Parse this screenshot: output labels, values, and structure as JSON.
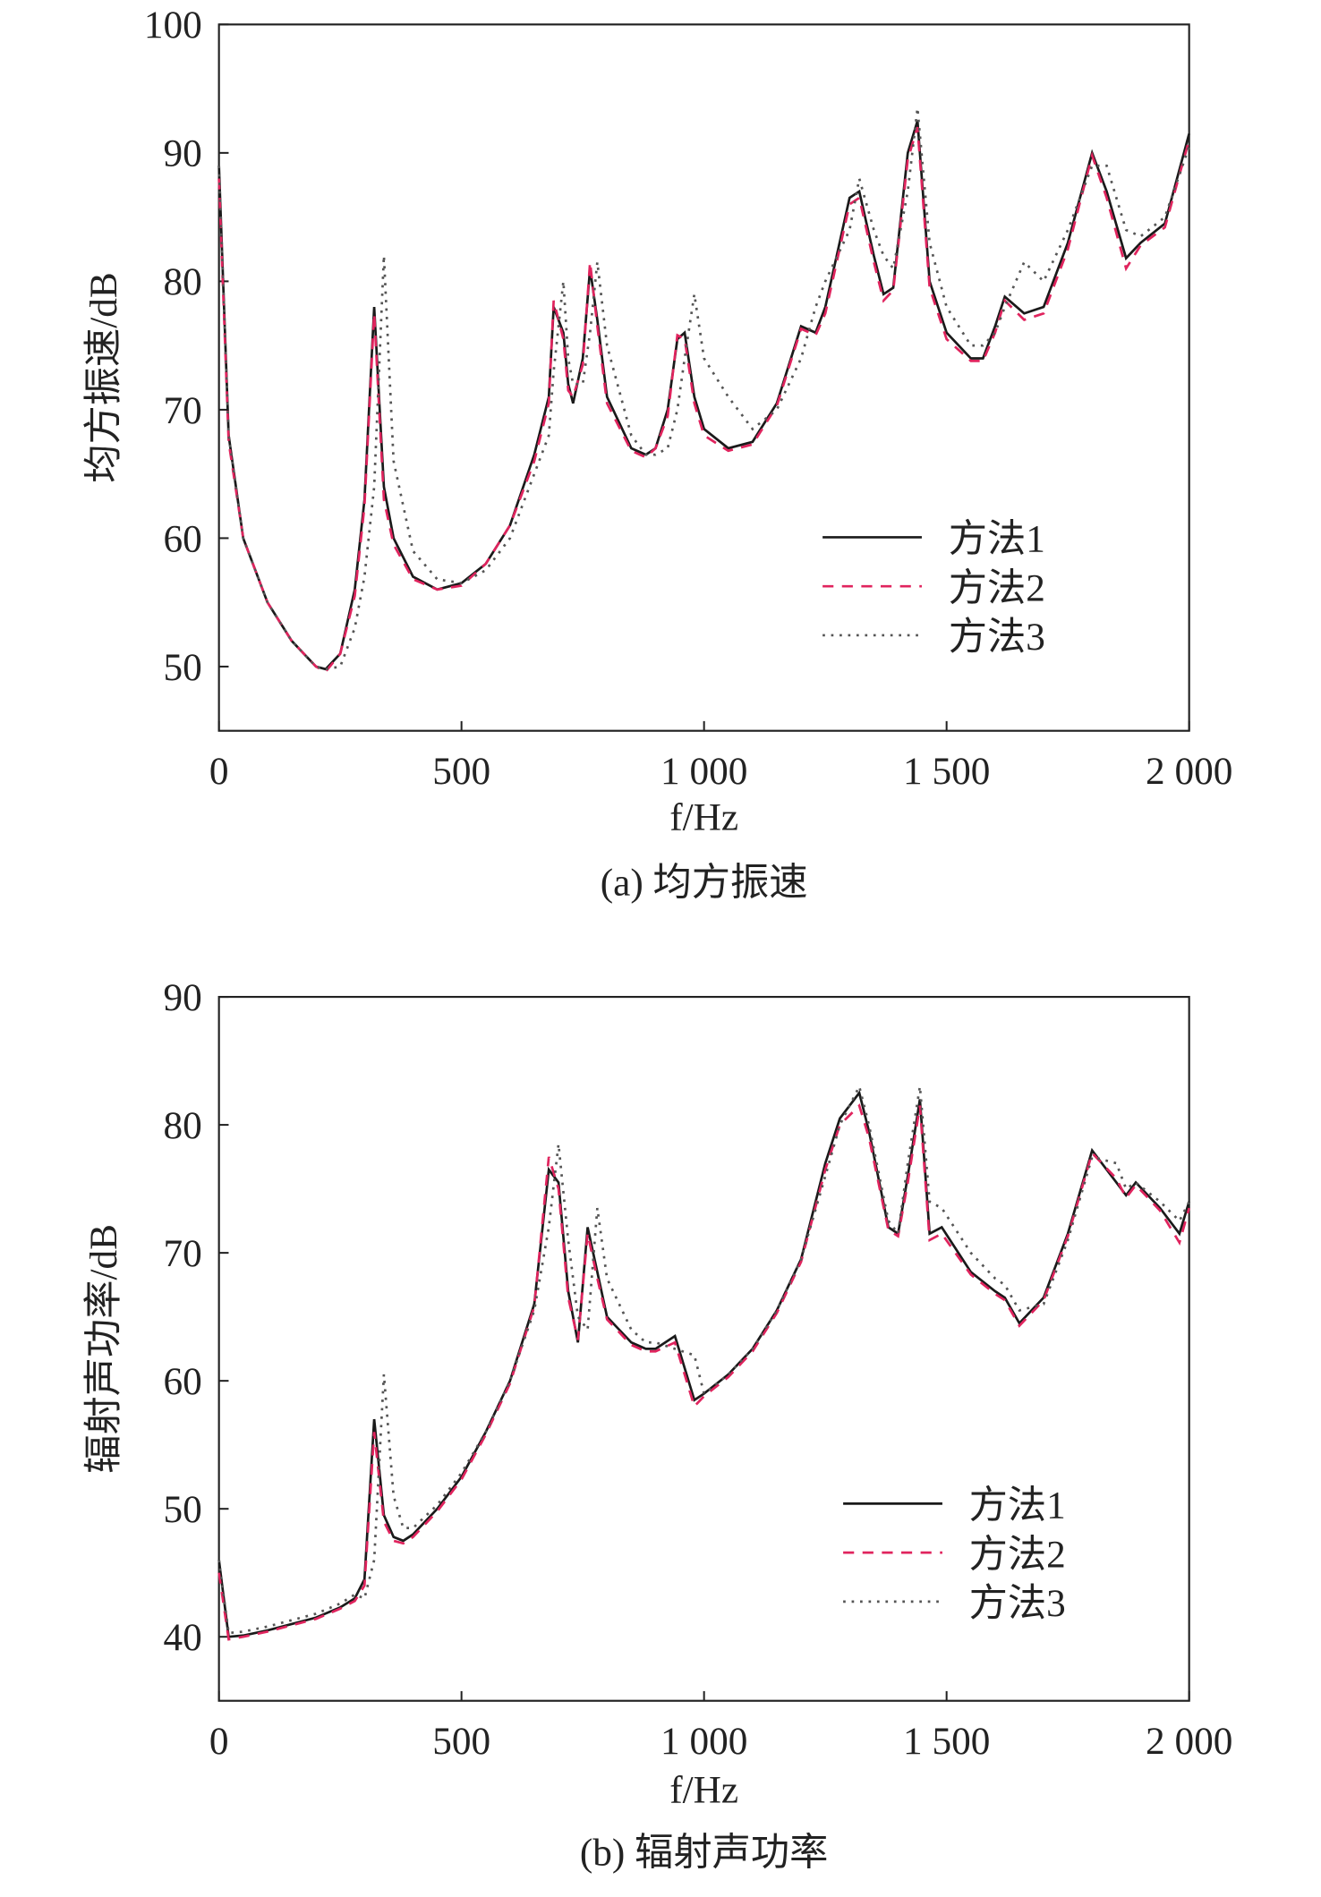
{
  "chart_data": [
    {
      "type": "line",
      "caption": "(a) 均方振速",
      "xlabel": "f/Hz",
      "ylabel": "均方振速/dB",
      "xlim": [
        0,
        2000
      ],
      "ylim": [
        45,
        100
      ],
      "xticks": [
        0,
        500,
        {
          "value": 1000,
          "label": "1 000"
        },
        {
          "value": 1500,
          "label": "1 500"
        },
        {
          "value": 2000,
          "label": "2 000"
        }
      ],
      "yticks": [
        50,
        60,
        70,
        80,
        90,
        100
      ],
      "x": [
        0,
        20,
        50,
        100,
        150,
        200,
        220,
        250,
        280,
        300,
        320,
        340,
        360,
        400,
        450,
        500,
        550,
        600,
        650,
        680,
        690,
        710,
        720,
        730,
        750,
        765,
        780,
        800,
        850,
        880,
        900,
        925,
        945,
        960,
        980,
        1000,
        1050,
        1100,
        1150,
        1200,
        1230,
        1250,
        1300,
        1320,
        1350,
        1370,
        1390,
        1420,
        1440,
        1465,
        1500,
        1550,
        1575,
        1600,
        1620,
        1660,
        1700,
        1750,
        1800,
        1830,
        1870,
        1900,
        1950,
        2000
      ],
      "series": [
        {
          "name": "方法1",
          "color": "#1a1a1a",
          "values": [
            89,
            68,
            60,
            55,
            52,
            50,
            49.8,
            51,
            56,
            63,
            78,
            64,
            60,
            57,
            56,
            56.5,
            58,
            61,
            66.5,
            71,
            78,
            76,
            72,
            70.5,
            74,
            81,
            77,
            71,
            67,
            66.5,
            67,
            70,
            75.5,
            76,
            71,
            68.5,
            67,
            67.5,
            70.5,
            76.5,
            76,
            78,
            86.5,
            87,
            82,
            79,
            79.5,
            90,
            92.5,
            80,
            76,
            74,
            74,
            76.5,
            78.8,
            77.5,
            78,
            83,
            90,
            87,
            81.8,
            83,
            84.5,
            91.5
          ]
        },
        {
          "name": "方法2",
          "color": "#e0245e",
          "values": [
            88,
            67.5,
            60,
            55,
            52,
            50,
            49.6,
            51,
            55.5,
            62.5,
            77.5,
            63,
            59.5,
            56.8,
            56,
            56.3,
            58,
            61,
            66,
            70.5,
            78.5,
            75.5,
            71.5,
            71,
            73.5,
            81.5,
            76.5,
            70.5,
            66.8,
            66.3,
            67,
            69.5,
            75.8,
            75.5,
            70.5,
            68,
            66.8,
            67.3,
            70.3,
            76.3,
            75.8,
            77.5,
            86,
            86.5,
            81.5,
            78.5,
            79.3,
            89.5,
            92,
            79.5,
            75.5,
            73.8,
            73.8,
            76,
            78.5,
            77,
            77.5,
            82.5,
            89.8,
            86.5,
            81,
            82.8,
            84.2,
            91
          ]
        },
        {
          "name": "方法3",
          "color": "#555555",
          "values": [
            89,
            68,
            60,
            55,
            52,
            50,
            49.8,
            50,
            53,
            57,
            64,
            82,
            66,
            59,
            56.8,
            56.5,
            57.5,
            60,
            65,
            68,
            73,
            80,
            74,
            72,
            72,
            76,
            81.5,
            75,
            68,
            66.5,
            66.5,
            67,
            70,
            74,
            79,
            74,
            71,
            68.5,
            70,
            74,
            78,
            80,
            84,
            88,
            84,
            82,
            81,
            87,
            93.5,
            83,
            78,
            75,
            75,
            76,
            78,
            81.5,
            80,
            84,
            89,
            89,
            84,
            83.5,
            85,
            90.5
          ]
        }
      ]
    },
    {
      "type": "line",
      "caption": "(b) 辐射声功率",
      "xlabel": "f/Hz",
      "ylabel": "辐射声功率/dB",
      "xlim": [
        0,
        2000
      ],
      "ylim": [
        35,
        90
      ],
      "xticks": [
        0,
        500,
        {
          "value": 1000,
          "label": "1 000"
        },
        {
          "value": 1500,
          "label": "1 500"
        },
        {
          "value": 2000,
          "label": "2 000"
        }
      ],
      "yticks": [
        40,
        50,
        60,
        70,
        80,
        90
      ],
      "x": [
        0,
        20,
        50,
        100,
        150,
        200,
        250,
        280,
        300,
        320,
        340,
        360,
        380,
        400,
        450,
        500,
        550,
        600,
        650,
        680,
        700,
        720,
        740,
        760,
        780,
        800,
        850,
        880,
        900,
        940,
        980,
        1000,
        1050,
        1100,
        1150,
        1200,
        1250,
        1280,
        1320,
        1340,
        1380,
        1400,
        1420,
        1445,
        1465,
        1490,
        1550,
        1600,
        1620,
        1650,
        1700,
        1750,
        1800,
        1850,
        1870,
        1890,
        1940,
        1980,
        2000
      ],
      "series": [
        {
          "name": "方法1",
          "color": "#1a1a1a",
          "values": [
            46,
            40,
            40.1,
            40.5,
            41,
            41.5,
            42.3,
            43,
            44.5,
            57,
            49.5,
            47.8,
            47.5,
            48,
            50,
            52.5,
            56,
            60,
            66,
            76.5,
            75.5,
            67,
            63,
            72,
            68.5,
            65,
            63,
            62.5,
            62.5,
            63.5,
            58.5,
            59,
            60.5,
            62.5,
            65.5,
            69.5,
            77,
            80.5,
            82.5,
            79.5,
            72,
            71.5,
            76,
            82,
            71.5,
            72,
            68.5,
            67,
            66.5,
            64.5,
            66.5,
            71.5,
            78,
            75.5,
            74.5,
            75.5,
            73.5,
            71.5,
            74
          ]
        },
        {
          "name": "方法2",
          "color": "#e0245e",
          "values": [
            45,
            39.8,
            40,
            40.4,
            40.9,
            41.4,
            42.2,
            42.8,
            44,
            56,
            49,
            47.5,
            47.3,
            47.8,
            49.8,
            52.3,
            55.8,
            59.8,
            65.8,
            77.5,
            75,
            66.5,
            63.2,
            71.5,
            68,
            64.8,
            62.8,
            62.3,
            62.3,
            63,
            58,
            58.8,
            60.3,
            62.3,
            65.3,
            69.3,
            76.5,
            80,
            81.5,
            79,
            71.8,
            71.3,
            75.5,
            81.5,
            71,
            71.5,
            68.3,
            66.8,
            66.3,
            64.3,
            66.3,
            71.3,
            77.8,
            75.8,
            74.3,
            75.3,
            73.3,
            70.8,
            73.5
          ]
        },
        {
          "name": "方法3",
          "color": "#555555",
          "values": [
            46,
            40.3,
            40.4,
            40.8,
            41.3,
            41.8,
            42.6,
            43.3,
            43,
            46,
            60.5,
            51,
            48.5,
            48.5,
            50.3,
            52.8,
            56,
            60,
            65.5,
            72,
            78.5,
            71,
            65,
            64,
            73.5,
            68,
            64,
            63,
            63,
            62.5,
            62,
            59,
            60.5,
            62.5,
            65.5,
            69.5,
            76,
            80,
            83,
            80,
            72.5,
            71.5,
            77,
            83,
            74,
            73.5,
            70,
            68,
            67.5,
            65.5,
            66,
            71,
            77.5,
            77,
            75,
            75.5,
            74,
            72.5,
            74
          ]
        }
      ]
    }
  ]
}
